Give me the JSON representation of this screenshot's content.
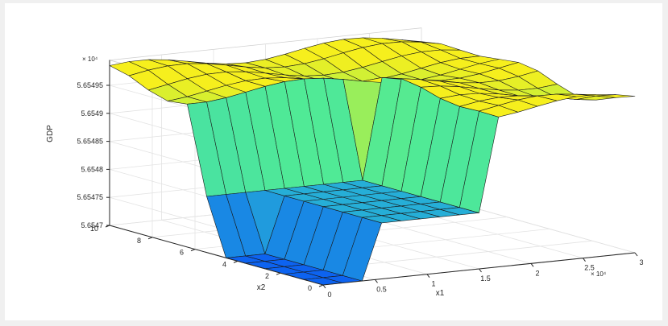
{
  "chart_data": {
    "type": "surface",
    "title": "",
    "zlabel": "GDP",
    "xlabel": "x1",
    "ylabel": "x2",
    "z_exponent_label": "× 10⁴",
    "x_exponent_label": "× 10⁴",
    "xlim": [
      0,
      3
    ],
    "ylim": [
      0,
      10
    ],
    "zlim": [
      5.6547,
      5.65495
    ],
    "x_ticks": [
      "0",
      "0.5",
      "1",
      "1.5",
      "2",
      "2.5",
      "3"
    ],
    "y_ticks": [
      "0",
      "2",
      "4",
      "6",
      "8",
      "10"
    ],
    "z_ticks": [
      "5.6547",
      "5.65475",
      "5.6548",
      "5.65485",
      "5.6549",
      "5.65495"
    ],
    "colormap": "parula",
    "colors": {
      "low": "#0d63f0",
      "mid": "#46ea9c",
      "high": "#f6ef1d",
      "edge": "#1a1a1a"
    },
    "grid": true,
    "x_grid_count": 16,
    "y_grid_count": 11,
    "surface": {
      "plateau_z": 5.65497,
      "trough_x_range": [
        0.0,
        1.55
      ],
      "trough_y_range": [
        0.0,
        6.0
      ],
      "trough_floor_z": 5.6547
    }
  }
}
